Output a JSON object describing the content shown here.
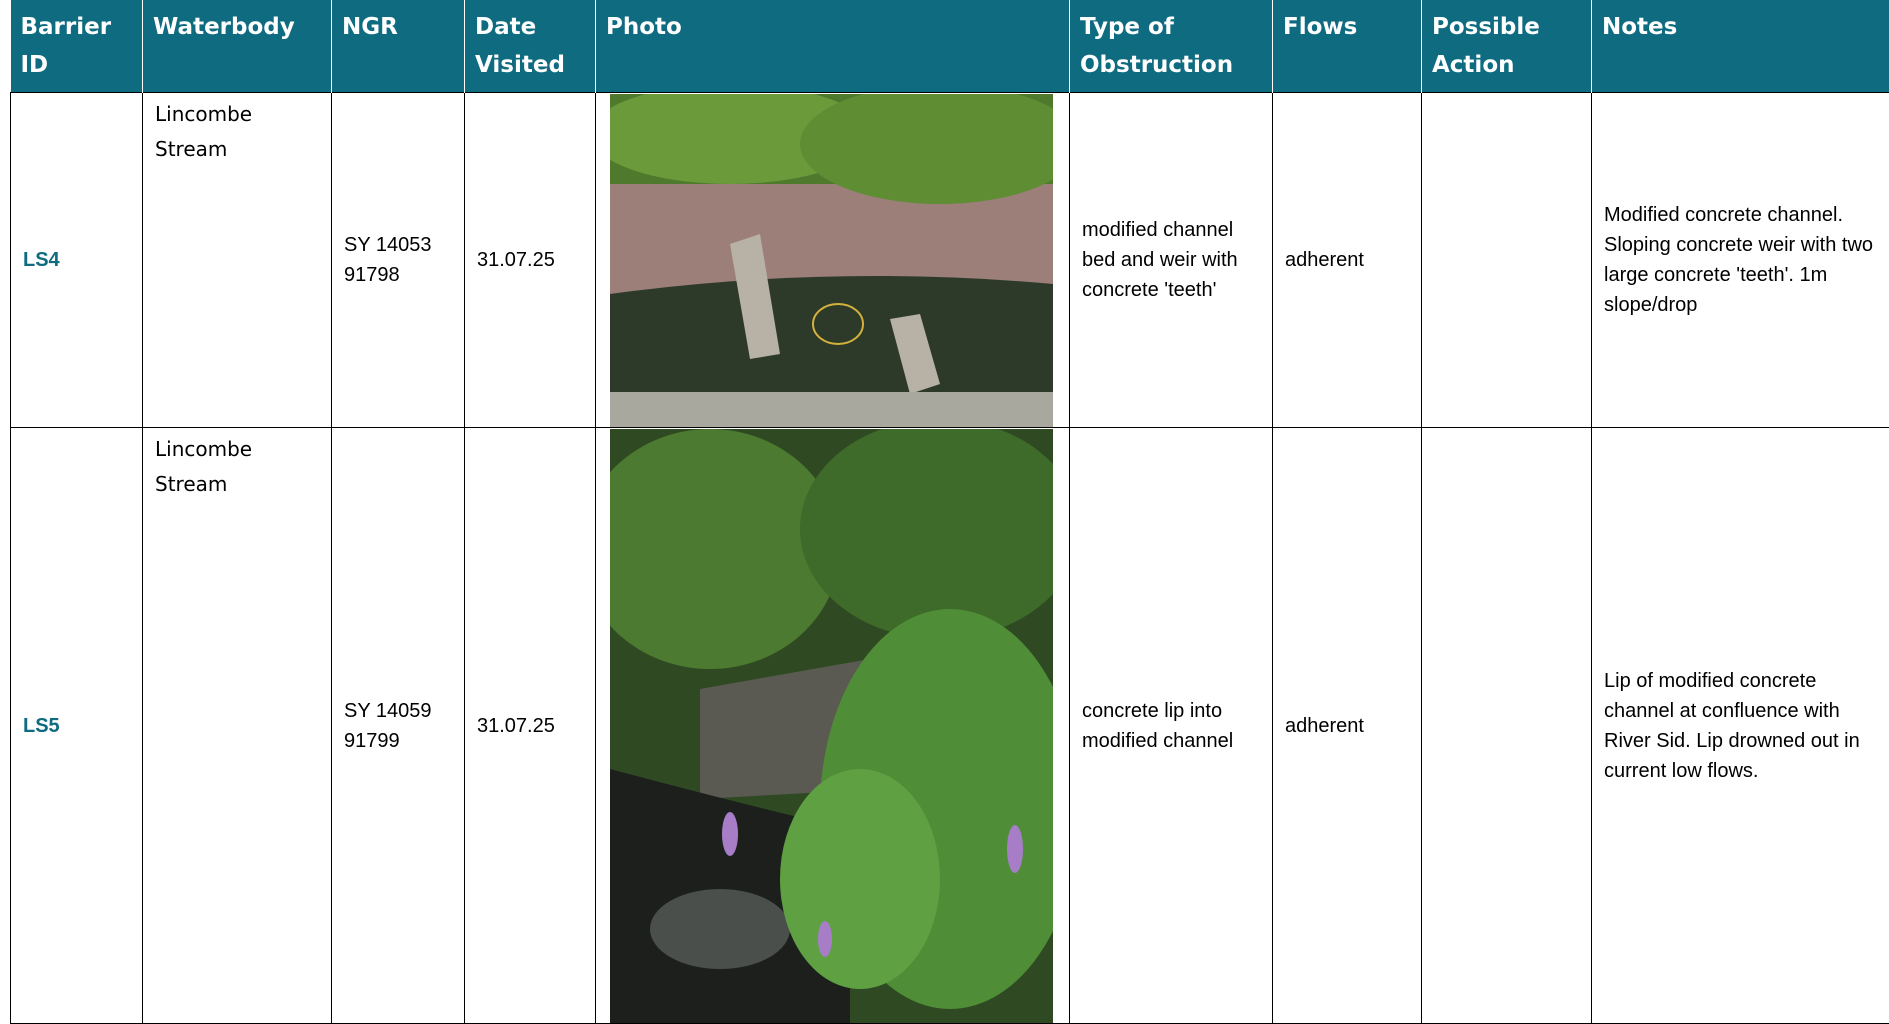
{
  "table": {
    "header": [
      "Barrier ID",
      "Waterbody",
      "NGR",
      "Date Visited",
      "Photo",
      "Type of Obstruction",
      "Flows",
      "Possible Action",
      "Notes"
    ],
    "rows": [
      {
        "barrier_id": "LS4",
        "waterbody": "Lincombe Stream",
        "ngr": "SY 14053 91798",
        "date_visited": "31.07.25",
        "type_of_obstruction": "modified channel bed and weir with concrete 'teeth'",
        "flows": "adherent",
        "notes": "Modified concrete channel. Sloping concrete weir with two large concrete 'teeth'. 1m slope/drop"
      },
      {
        "barrier_id": "LS5",
        "waterbody": "Lincombe Stream",
        "ngr": "SY 14059 91799",
        "date_visited": "31.07.25",
        "type_of_obstruction": "concrete lip into modified channel",
        "flows": "adherent",
        "notes": "Lip of modified concrete channel at confluence with River Sid. Lip drowned out in current low flows."
      }
    ]
  }
}
